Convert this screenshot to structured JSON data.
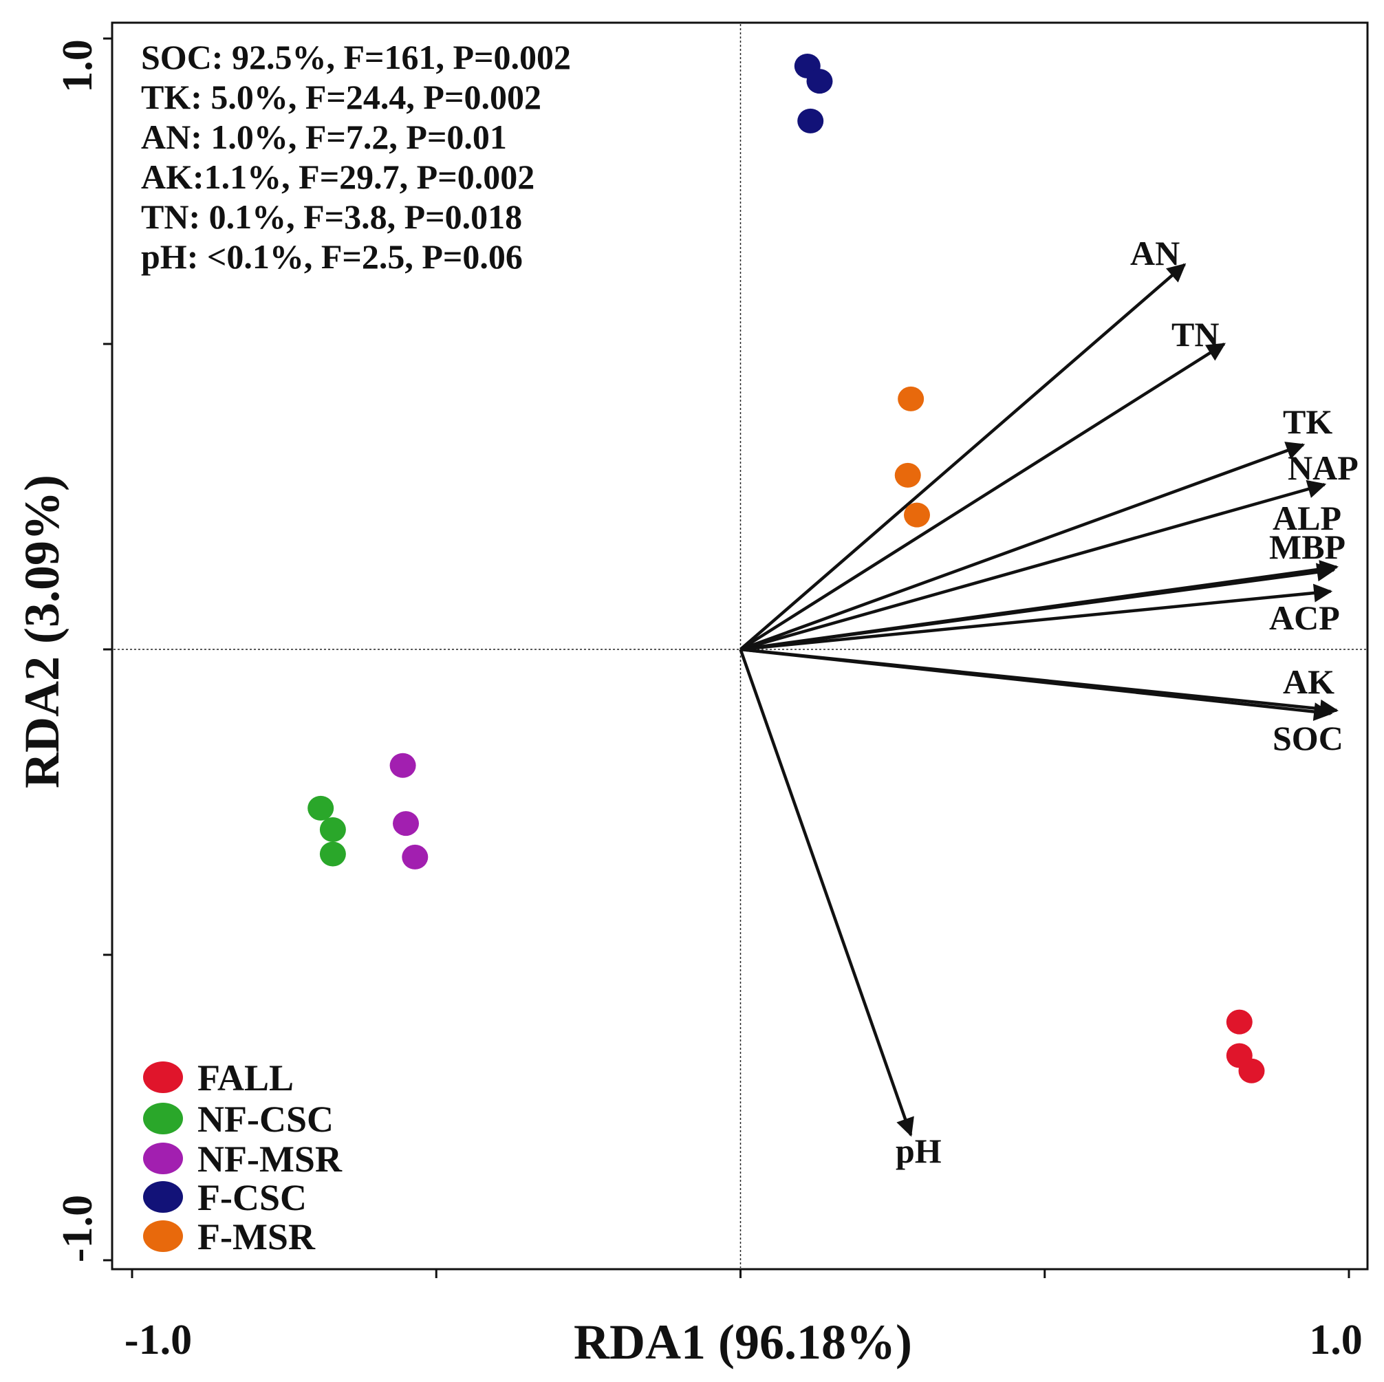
{
  "chart_data": {
    "type": "scatter",
    "subtype": "rda-biplot",
    "xlabel": "RDA1 (96.18%)",
    "ylabel": "RDA2 (3.09%)",
    "xlim": [
      -1.0,
      1.0
    ],
    "ylim": [
      -1.0,
      1.0
    ],
    "x_tick_labels": [
      "-1.0",
      "1.0"
    ],
    "y_tick_labels": [
      "1.0",
      "-1.0"
    ],
    "x_ticks": [
      -1.0,
      -0.5,
      0.0,
      0.5,
      1.0
    ],
    "y_ticks": [
      -1.0,
      -0.5,
      0.0,
      0.5,
      1.0
    ],
    "reference_lines": {
      "x": 0,
      "y": 0,
      "style": "dotted"
    },
    "annotations": [
      "SOC: 92.5%, F=161, P=0.002",
      "TK: 5.0%, F=24.4, P=0.002",
      "AN: 1.0%, F=7.2, P=0.01",
      "AK:1.1%, F=29.7, P=0.002",
      "TN: 0.1%, F=3.8, P=0.018",
      "pH: <0.1%, F=2.5, P=0.06"
    ],
    "legend_position": "bottom-left",
    "series": [
      {
        "name": "FALL",
        "color": "#e0152b",
        "points": [
          [
            0.82,
            -0.61
          ],
          [
            0.82,
            -0.665
          ],
          [
            0.84,
            -0.69
          ]
        ]
      },
      {
        "name": "NF-CSC",
        "color": "#2aa72a",
        "points": [
          [
            -0.69,
            -0.26
          ],
          [
            -0.67,
            -0.295
          ],
          [
            -0.67,
            -0.335
          ]
        ]
      },
      {
        "name": "NF-MSR",
        "color": "#a21fb0",
        "points": [
          [
            -0.555,
            -0.19
          ],
          [
            -0.55,
            -0.285
          ],
          [
            -0.535,
            -0.34
          ]
        ]
      },
      {
        "name": "F-CSC",
        "color": "#121278",
        "points": [
          [
            0.11,
            0.955
          ],
          [
            0.13,
            0.93
          ],
          [
            0.115,
            0.865
          ]
        ]
      },
      {
        "name": "F-MSR",
        "color": "#e8690c",
        "points": [
          [
            0.28,
            0.41
          ],
          [
            0.275,
            0.285
          ],
          [
            0.29,
            0.22
          ]
        ]
      }
    ],
    "vectors": [
      {
        "label": "AN",
        "end": [
          0.73,
          0.63
        ]
      },
      {
        "label": "TN",
        "end": [
          0.795,
          0.5
        ]
      },
      {
        "label": "TK",
        "end": [
          0.925,
          0.335
        ]
      },
      {
        "label": "NAP",
        "end": [
          0.96,
          0.27
        ]
      },
      {
        "label": "ALP",
        "end": [
          0.98,
          0.135
        ]
      },
      {
        "label": "MBP",
        "end": [
          0.975,
          0.13
        ]
      },
      {
        "label": "ACP",
        "end": [
          0.97,
          0.095
        ]
      },
      {
        "label": "AK",
        "end": [
          0.98,
          -0.1
        ]
      },
      {
        "label": "SOC",
        "end": [
          0.97,
          -0.105
        ]
      },
      {
        "label": "pH",
        "end": [
          0.28,
          -0.795
        ]
      }
    ]
  }
}
